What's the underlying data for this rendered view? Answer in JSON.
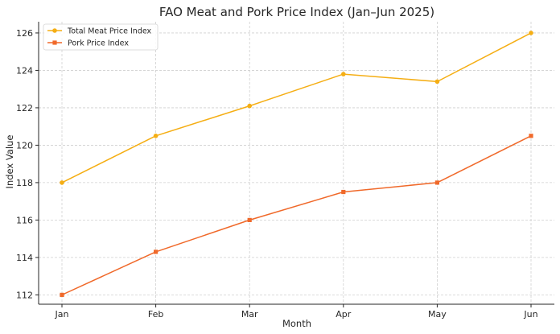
{
  "chart_data": {
    "type": "line",
    "title": "FAO Meat and Pork Price Index (Jan–Jun 2025)",
    "xlabel": "Month",
    "ylabel": "Index Value",
    "categories": [
      "Jan",
      "Feb",
      "Mar",
      "Apr",
      "May",
      "Jun"
    ],
    "ylim": [
      111.5,
      126.6
    ],
    "yticks": [
      112,
      114,
      116,
      118,
      120,
      122,
      124,
      126
    ],
    "grid": true,
    "legend_position": "top-left",
    "series": [
      {
        "name": "Total Meat Price Index",
        "values": [
          118.0,
          120.5,
          122.1,
          123.8,
          123.4,
          126.0
        ],
        "color": "#f5ae14",
        "marker": "circle"
      },
      {
        "name": "Pork Price Index",
        "values": [
          112.0,
          114.3,
          116.0,
          117.5,
          118.0,
          120.5
        ],
        "color": "#f0692a",
        "marker": "square"
      }
    ]
  }
}
